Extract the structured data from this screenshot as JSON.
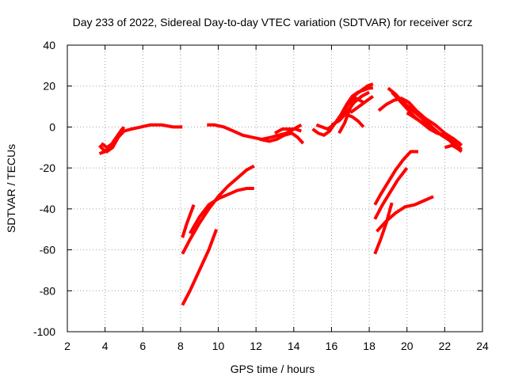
{
  "chart_data": {
    "type": "line",
    "title": "Day 233 of 2022, Sidereal Day-to-day VTEC variation (SDTVAR) for receiver scrz",
    "xlabel": "GPS time / hours",
    "ylabel": "SDTVAR / TECUs",
    "xlim": [
      2,
      24
    ],
    "ylim": [
      -100,
      40
    ],
    "xticks": [
      2,
      4,
      6,
      8,
      10,
      12,
      14,
      16,
      18,
      20,
      22,
      24
    ],
    "yticks": [
      -100,
      -80,
      -60,
      -40,
      -20,
      0,
      20,
      40
    ],
    "grid": true,
    "color": "#ff0000",
    "series": [
      {
        "name": "s1",
        "x": [
          3.7,
          3.9,
          4.1,
          4.4,
          4.7,
          5.0,
          5.4,
          5.9,
          6.4,
          7.0,
          7.6,
          8.1
        ],
        "y": [
          -9,
          -11,
          -12,
          -10,
          -5,
          -2,
          -1,
          0,
          1,
          1,
          0,
          0
        ]
      },
      {
        "name": "s2",
        "x": [
          3.7,
          4.0,
          4.3,
          4.6,
          4.9
        ],
        "y": [
          -13,
          -12,
          -9,
          -5,
          -1
        ]
      },
      {
        "name": "s3",
        "x": [
          3.8,
          4.1,
          4.4,
          4.7,
          5.0
        ],
        "y": [
          -8,
          -10,
          -8,
          -4,
          0
        ]
      },
      {
        "name": "s4",
        "x": [
          9.4,
          9.8,
          10.3,
          10.8,
          11.3,
          11.8,
          12.3,
          12.8,
          13.2,
          13.6,
          14.0,
          14.4
        ],
        "y": [
          1,
          1,
          0,
          -2,
          -4,
          -5,
          -6,
          -5,
          -4,
          -3,
          -1,
          1
        ]
      },
      {
        "name": "s5",
        "x": [
          12.2,
          12.7,
          13.1,
          13.5,
          13.9,
          14.2,
          14.5
        ],
        "y": [
          -6,
          -7,
          -6,
          -4,
          -3,
          -5,
          -8
        ]
      },
      {
        "name": "s6",
        "x": [
          13.0,
          13.4,
          13.8,
          14.1,
          14.4
        ],
        "y": [
          -3,
          -1,
          -1,
          -1,
          -2
        ]
      },
      {
        "name": "s7",
        "x": [
          15.0,
          15.3,
          15.6,
          15.9,
          16.2,
          16.5,
          16.8,
          17.1,
          17.4,
          17.7,
          18.0,
          18.2
        ],
        "y": [
          -1,
          -3,
          -4,
          -2,
          2,
          6,
          11,
          15,
          17,
          18,
          19,
          19
        ]
      },
      {
        "name": "s8",
        "x": [
          15.2,
          15.5,
          15.8,
          16.1,
          16.4,
          16.7,
          17.0,
          17.3,
          17.6,
          17.9,
          18.2
        ],
        "y": [
          1,
          0,
          -1,
          1,
          4,
          8,
          13,
          16,
          18,
          20,
          21
        ]
      },
      {
        "name": "s9",
        "x": [
          16.4,
          16.7,
          16.9,
          17.1,
          17.3,
          17.5,
          17.7
        ],
        "y": [
          -3,
          2,
          7,
          12,
          14,
          13,
          12
        ]
      },
      {
        "name": "s10",
        "x": [
          16.0,
          16.4,
          16.8,
          17.2,
          17.6,
          18.0
        ],
        "y": [
          1,
          3,
          7,
          12,
          15,
          17
        ]
      },
      {
        "name": "s11",
        "x": [
          17.0,
          17.3,
          17.6,
          17.9,
          18.2
        ],
        "y": [
          7,
          9,
          11,
          13,
          15
        ]
      },
      {
        "name": "s12",
        "x": [
          16.8,
          17.1,
          17.4,
          17.7
        ],
        "y": [
          6,
          5,
          3,
          0
        ]
      },
      {
        "name": "s13",
        "x": [
          18.5,
          18.9,
          19.3,
          19.7,
          20.1,
          20.5,
          21.0,
          21.5,
          22.0,
          22.5,
          22.9
        ],
        "y": [
          8,
          11,
          13,
          14,
          12,
          8,
          4,
          1,
          -3,
          -6,
          -9
        ]
      },
      {
        "name": "s14",
        "x": [
          19.0,
          19.4,
          19.8,
          20.2,
          20.7,
          21.2,
          21.7,
          22.2,
          22.6,
          22.9
        ],
        "y": [
          19,
          16,
          12,
          9,
          5,
          1,
          -3,
          -6,
          -10,
          -12
        ]
      },
      {
        "name": "s15",
        "x": [
          20.0,
          20.5,
          21.0,
          21.5,
          22.0,
          22.5,
          22.9
        ],
        "y": [
          7,
          4,
          1,
          -2,
          -5,
          -8,
          -11
        ]
      },
      {
        "name": "s16",
        "x": [
          19.2,
          19.6,
          20.0,
          20.4,
          20.8,
          21.2,
          21.6,
          22.0,
          22.4,
          22.8
        ],
        "y": [
          17,
          13,
          9,
          5,
          2,
          -1,
          -3,
          -4,
          -6,
          -8
        ]
      },
      {
        "name": "s17",
        "x": [
          22.0,
          22.4,
          22.8
        ],
        "y": [
          -10,
          -9,
          -11
        ]
      },
      {
        "name": "s18",
        "x": [
          8.1,
          8.3,
          8.5,
          8.7
        ],
        "y": [
          -54,
          -48,
          -43,
          -38
        ]
      },
      {
        "name": "s19",
        "x": [
          8.1,
          8.5,
          9.0,
          9.5,
          10.0,
          10.5,
          11.0,
          11.5,
          11.9
        ],
        "y": [
          -62,
          -55,
          -47,
          -40,
          -34,
          -29,
          -25,
          -21,
          -19
        ]
      },
      {
        "name": "s20",
        "x": [
          8.5,
          9.0,
          9.5,
          10.0,
          10.5,
          11.0,
          11.5,
          11.9
        ],
        "y": [
          -52,
          -44,
          -38,
          -35,
          -33,
          -31,
          -30,
          -30
        ]
      },
      {
        "name": "s21",
        "x": [
          8.1,
          8.5,
          9.0,
          9.5,
          9.9
        ],
        "y": [
          -87,
          -80,
          -70,
          -60,
          -50
        ]
      },
      {
        "name": "s22",
        "x": [
          18.3,
          18.6,
          19.0,
          19.4,
          19.8,
          20.2,
          20.6
        ],
        "y": [
          -38,
          -33,
          -27,
          -21,
          -16,
          -12,
          -12
        ]
      },
      {
        "name": "s23",
        "x": [
          18.3,
          18.7,
          19.1,
          19.5,
          20.0
        ],
        "y": [
          -45,
          -38,
          -32,
          -26,
          -20
        ]
      },
      {
        "name": "s24",
        "x": [
          18.3,
          18.6,
          18.9,
          19.2
        ],
        "y": [
          -62,
          -55,
          -47,
          -37
        ]
      },
      {
        "name": "s25",
        "x": [
          18.4,
          18.9,
          19.4,
          19.9,
          20.4,
          20.9,
          21.4
        ],
        "y": [
          -51,
          -46,
          -42,
          -39,
          -38,
          -36,
          -34
        ]
      }
    ]
  }
}
